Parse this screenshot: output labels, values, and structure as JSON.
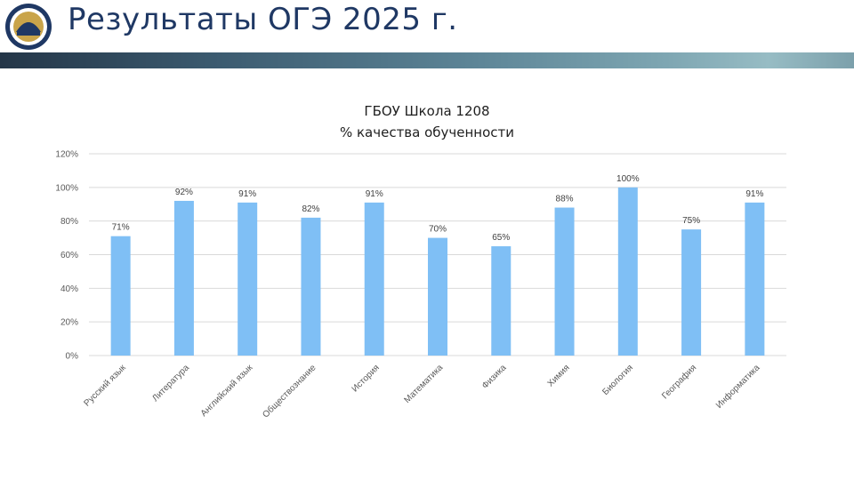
{
  "slide": {
    "title": "Результаты ОГЭ 2025 г."
  },
  "colors": {
    "bar": "#7fbff5",
    "title": "#1f3864",
    "gridline": "#d9d9d9"
  },
  "chart_data": {
    "type": "bar",
    "title": "ГБОУ Школа 1208",
    "subtitle": "% качества обученности",
    "categories": [
      "Русский язык",
      "Литература",
      "Английский язык",
      "Обществознание",
      "История",
      "Математика",
      "Физика",
      "Химия",
      "Биология",
      "География",
      "Информатика"
    ],
    "values": [
      71,
      92,
      91,
      82,
      91,
      70,
      65,
      88,
      100,
      75,
      91
    ],
    "value_labels": [
      "71%",
      "92%",
      "91%",
      "82%",
      "91%",
      "70%",
      "65%",
      "88%",
      "100%",
      "75%",
      "91%"
    ],
    "ylim": [
      0,
      120
    ],
    "yticks": [
      "0%",
      "20%",
      "40%",
      "60%",
      "80%",
      "100%",
      "120%"
    ],
    "grid": true,
    "legend": "none"
  }
}
